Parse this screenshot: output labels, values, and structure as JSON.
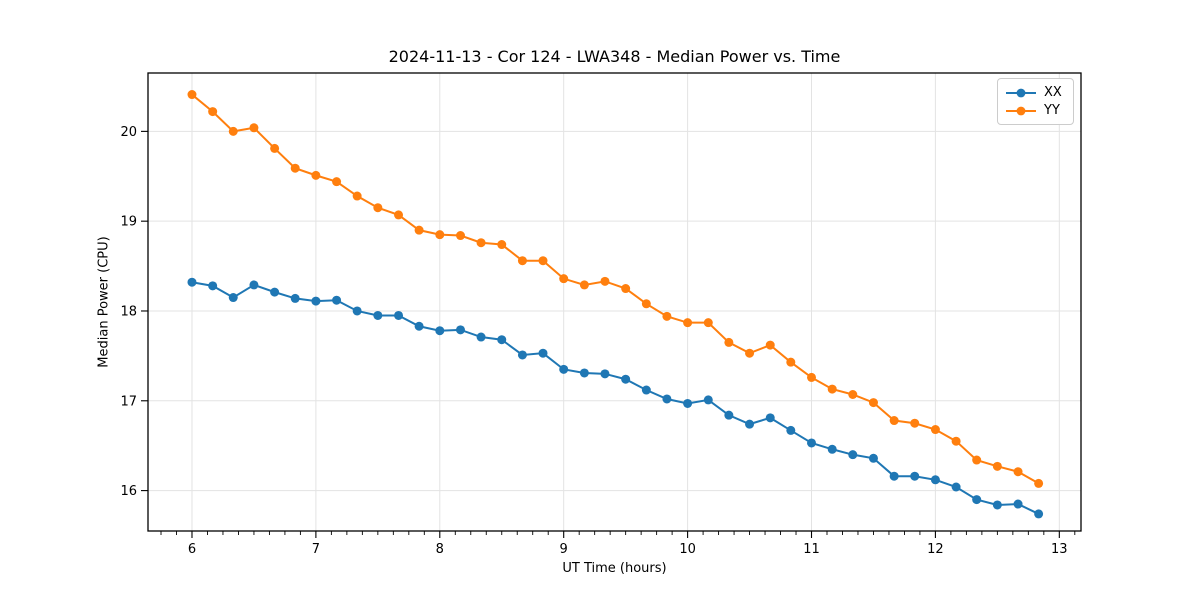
{
  "chart_data": {
    "type": "line",
    "title": "2024-11-13 - Cor 124 - LWA348 - Median Power vs. Time",
    "xlabel": "UT Time (hours)",
    "ylabel": "Median Power (CPU)",
    "xlim": [
      5.645,
      13.175
    ],
    "ylim": [
      15.55,
      20.65
    ],
    "x_ticks": [
      6,
      7,
      8,
      9,
      10,
      11,
      12,
      13
    ],
    "y_ticks": [
      16,
      17,
      18,
      19,
      20
    ],
    "x_minor_step": 0.125,
    "grid": true,
    "grid_color": "#e3e3e3",
    "legend_position": "upper right",
    "x": [
      6,
      6.167,
      6.333,
      6.5,
      6.667,
      6.833,
      7,
      7.167,
      7.333,
      7.5,
      7.667,
      7.833,
      8,
      8.167,
      8.333,
      8.5,
      8.667,
      8.833,
      9,
      9.167,
      9.333,
      9.5,
      9.667,
      9.833,
      10,
      10.167,
      10.333,
      10.5,
      10.667,
      10.833,
      11,
      11.167,
      11.333,
      11.5,
      11.667,
      11.833,
      12,
      12.167,
      12.333,
      12.5,
      12.667,
      12.833
    ],
    "series": [
      {
        "name": "XX",
        "color": "#1f77b4",
        "values": [
          18.32,
          18.28,
          18.15,
          18.29,
          18.21,
          18.14,
          18.11,
          18.12,
          18.0,
          17.95,
          17.95,
          17.83,
          17.78,
          17.79,
          17.71,
          17.68,
          17.51,
          17.53,
          17.35,
          17.31,
          17.3,
          17.24,
          17.12,
          17.02,
          16.97,
          17.01,
          16.84,
          16.74,
          16.81,
          16.67,
          16.53,
          16.46,
          16.4,
          16.36,
          16.16,
          16.16,
          16.12,
          16.04,
          15.9,
          15.84,
          15.85,
          15.74
        ]
      },
      {
        "name": "YY",
        "color": "#ff7f0e",
        "values": [
          20.41,
          20.22,
          20.0,
          20.04,
          19.81,
          19.59,
          19.51,
          19.44,
          19.28,
          19.15,
          19.07,
          18.9,
          18.85,
          18.84,
          18.76,
          18.74,
          18.56,
          18.56,
          18.36,
          18.29,
          18.33,
          18.25,
          18.08,
          17.94,
          17.87,
          17.87,
          17.65,
          17.53,
          17.62,
          17.43,
          17.26,
          17.13,
          17.07,
          16.98,
          16.78,
          16.75,
          16.68,
          16.55,
          16.34,
          16.27,
          16.21,
          16.08
        ]
      }
    ]
  }
}
